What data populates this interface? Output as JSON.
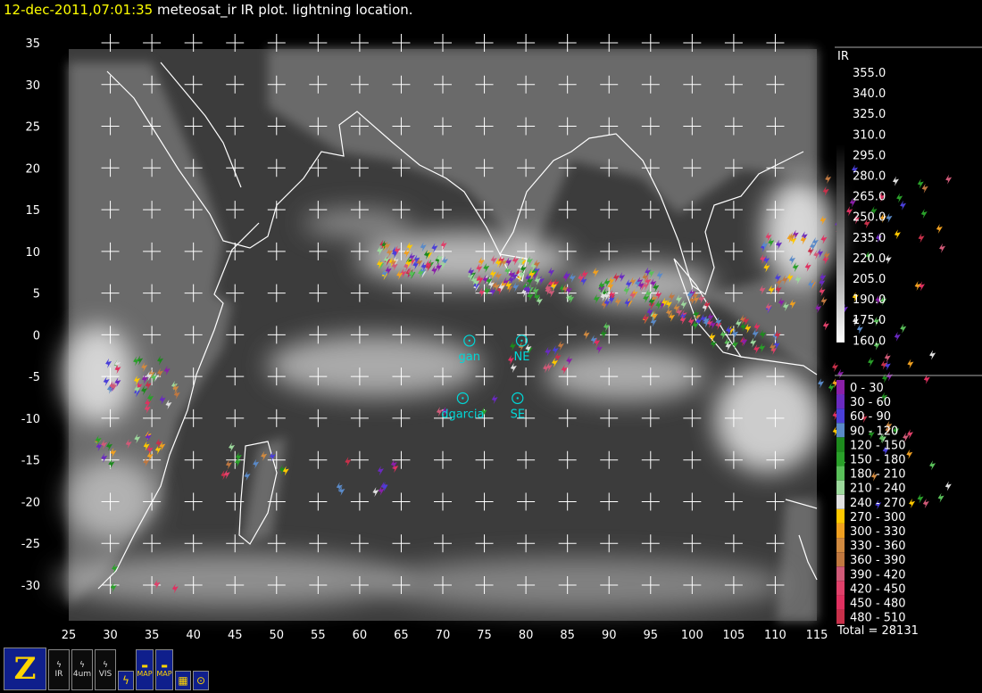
{
  "header": {
    "timestamp": "12-dec-2011,07:01:35",
    "title": " meteosat_ir IR  plot.  lightning location."
  },
  "map": {
    "lon_range": [
      25,
      115
    ],
    "lat_range": [
      -34,
      36
    ],
    "lon_ticks": [
      "25",
      "30",
      "35",
      "40",
      "45",
      "50",
      "55",
      "60",
      "65",
      "70",
      "75",
      "80",
      "85",
      "90",
      "95",
      "100",
      "105",
      "110",
      "115"
    ],
    "lat_ticks": [
      "35",
      "30",
      "25",
      "20",
      "15",
      "10",
      "5",
      "0",
      "-5",
      "-10",
      "-15",
      "-20",
      "-25",
      "-30"
    ],
    "sites": [
      {
        "name": "gan",
        "lon": 73.2,
        "lat": -0.7
      },
      {
        "name": "NE",
        "lon": 79.5,
        "lat": -0.7
      },
      {
        "name": "dgarcia",
        "lon": 72.4,
        "lat": -7.6
      },
      {
        "name": "SE",
        "lon": 79.0,
        "lat": -7.6
      }
    ],
    "lightning_clusters": [
      {
        "lon": 66,
        "lat": 9,
        "n": 55
      },
      {
        "lon": 77,
        "lat": 7,
        "n": 60
      },
      {
        "lon": 83,
        "lat": 6,
        "n": 30
      },
      {
        "lon": 92,
        "lat": 5.5,
        "n": 45
      },
      {
        "lon": 98,
        "lat": 3,
        "n": 40
      },
      {
        "lon": 106,
        "lat": 0,
        "n": 30
      },
      {
        "lon": 112,
        "lat": 10,
        "n": 25
      },
      {
        "lon": 112,
        "lat": 5,
        "n": 20
      },
      {
        "lon": 81,
        "lat": -3,
        "n": 15
      },
      {
        "lon": 33,
        "lat": -5,
        "n": 25
      },
      {
        "lon": 32,
        "lat": -14,
        "n": 20
      },
      {
        "lon": 47,
        "lat": -15,
        "n": 12
      },
      {
        "lon": 60,
        "lat": -17,
        "n": 10
      },
      {
        "lon": 36,
        "lat": -7,
        "n": 10
      },
      {
        "lon": 73,
        "lat": -9,
        "n": 4
      },
      {
        "lon": 34,
        "lat": -30,
        "n": 4
      },
      {
        "lon": 90,
        "lat": 0,
        "n": 6
      }
    ]
  },
  "ir_legend": {
    "title": "IR",
    "values": [
      "355.0",
      "340.0",
      "325.0",
      "310.0",
      "295.0",
      "280.0",
      "265.0",
      "250.0",
      "235.0",
      "220.0",
      "205.0",
      "190.0",
      "175.0",
      "160.0"
    ]
  },
  "lightning_legend": {
    "items": [
      {
        "label": "0 - 30",
        "color": "#8a1fa8"
      },
      {
        "label": "30 - 60",
        "color": "#6a2ac0"
      },
      {
        "label": "60 - 90",
        "color": "#4a3fd8"
      },
      {
        "label": "90 - 120",
        "color": "#5a8ac8"
      },
      {
        "label": "120 - 150",
        "color": "#1d8a1d"
      },
      {
        "label": "150 - 180",
        "color": "#2aa02a"
      },
      {
        "label": "180 - 210",
        "color": "#5ac05a"
      },
      {
        "label": "210 - 240",
        "color": "#9cd89c"
      },
      {
        "label": "240 - 270",
        "color": "#e0e0e0"
      },
      {
        "label": "270 - 300",
        "color": "#ffc800"
      },
      {
        "label": "300 - 330",
        "color": "#f0a020"
      },
      {
        "label": "330 - 360",
        "color": "#d08a40"
      },
      {
        "label": "360 - 390",
        "color": "#c07840"
      },
      {
        "label": "390 - 420",
        "color": "#d05a78"
      },
      {
        "label": "420 - 450",
        "color": "#e0406a"
      },
      {
        "label": "450 - 480",
        "color": "#e03060"
      },
      {
        "label": "480 - 510",
        "color": "#c8304a"
      }
    ],
    "total": "Total = 28131"
  },
  "toolbar": {
    "z_label": "Z",
    "b2_label": "IR",
    "b3_label": "4um",
    "b4_label": "VIS",
    "b5_label": "ϟ",
    "b6_label": "MAP",
    "b7_label": "MAP",
    "b8_label": "▦",
    "b9_label": "⊙"
  }
}
